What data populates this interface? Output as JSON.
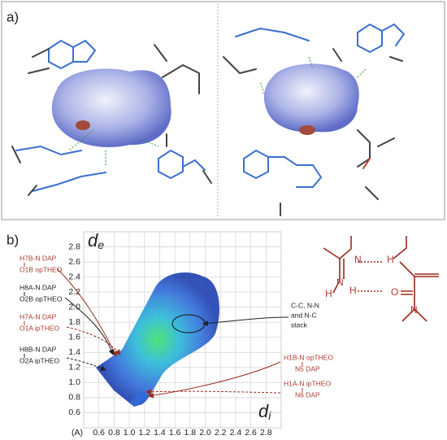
{
  "panel_a": {
    "label": "a)"
  },
  "panel_b": {
    "label": "b)",
    "plot": {
      "y_label": {
        "main": "d",
        "sub": "e"
      },
      "x_label": {
        "main": "d",
        "sub": "i"
      },
      "unit": "(A)",
      "xlim": [
        0.4,
        3.0
      ],
      "ylim": [
        0.4,
        3.0
      ],
      "xticks": [
        0.6,
        0.8,
        {
          "value": 1,
          "label": "1.0"
        },
        1.2,
        1.4,
        1.6,
        1.8,
        {
          "value": 2,
          "label": "2.0"
        },
        2.2,
        2.4,
        2.6,
        2.8
      ],
      "yticks": [
        0.6,
        0.8,
        {
          "value": 1,
          "label": "1.0"
        },
        1.2,
        1.4,
        1.6,
        1.8,
        {
          "value": 2,
          "label": "2.0"
        },
        2.2,
        2.4,
        2.6,
        2.8
      ]
    },
    "left_annotations": [
      {
        "top": "H7B-N DAP",
        "bottom": "O1B opTHEO"
      },
      {
        "top": "H8A-N DAP",
        "bottom": "O2B opTHEO"
      },
      {
        "top": "H7A-N DAP",
        "bottom": "O1A ipTHEO"
      },
      {
        "top": "H8B-N DAP",
        "bottom": "O2A ipTHEO"
      }
    ],
    "stack_annotation": [
      "C-C, N-N",
      "and N-C",
      "stack"
    ],
    "right_annotations": [
      {
        "top": "H1B-N opTHEO",
        "bottom": "N5 DAP"
      },
      {
        "top": "H1A-N ipTHEO",
        "bottom": "N6 DAP"
      }
    ],
    "structure_atoms": [
      "N",
      "H",
      "N",
      "H",
      "H",
      "O",
      "N"
    ]
  }
}
